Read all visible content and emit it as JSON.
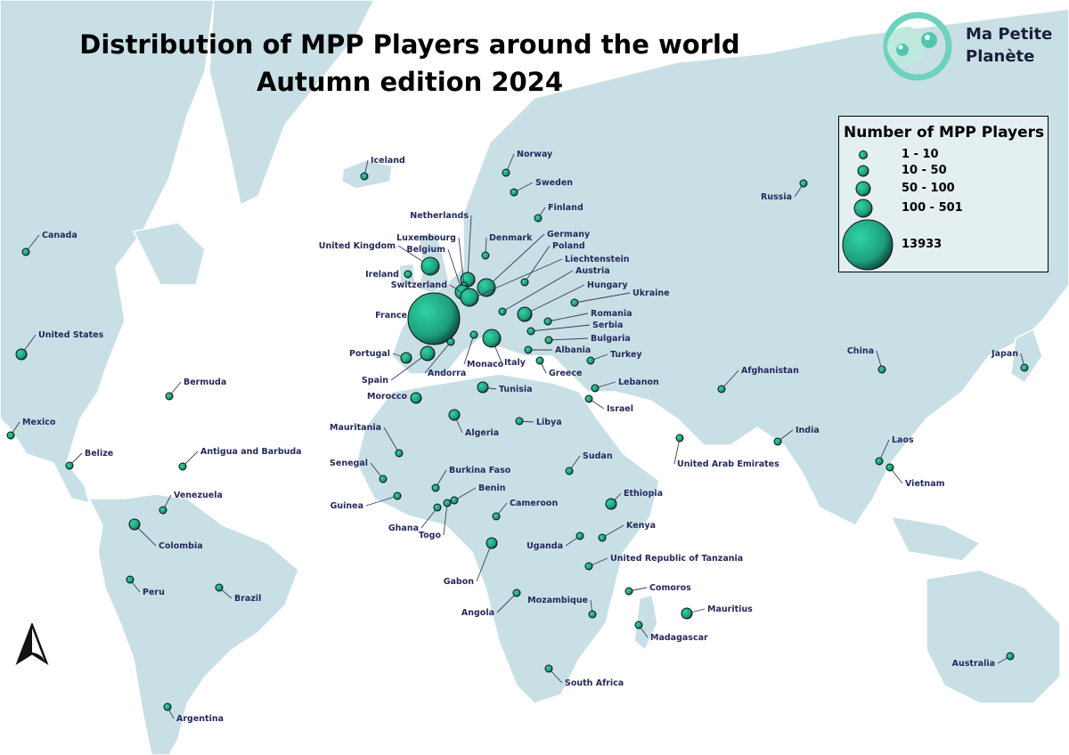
{
  "title_line1": "Distribution of MPP Players around the world",
  "title_line2": "Autumn edition 2024",
  "logo": {
    "line1": "Ma Petite",
    "line2": "Planète",
    "icon": "alien-face-logo-icon",
    "color": "#4fc7ad"
  },
  "legend": {
    "title": "Number of MPP Players",
    "items": [
      {
        "label": "1 - 10"
      },
      {
        "label": "10 - 50"
      },
      {
        "label": "50 - 100"
      },
      {
        "label": "100 - 501"
      },
      {
        "label": "13933"
      }
    ]
  },
  "colors": {
    "water": "#ffffff",
    "land": "#c8dfe6",
    "marker": "#27b98f",
    "label": "#262a5c"
  },
  "north_arrow_icon": "north-arrow-icon",
  "countries": [
    {
      "name": "Iceland",
      "size": 1
    },
    {
      "name": "Norway",
      "size": 1
    },
    {
      "name": "Sweden",
      "size": 1
    },
    {
      "name": "Finland",
      "size": 1
    },
    {
      "name": "Russia",
      "size": 1
    },
    {
      "name": "Netherlands",
      "size": 3
    },
    {
      "name": "Denmark",
      "size": 1
    },
    {
      "name": "Germany",
      "size": 4
    },
    {
      "name": "Poland",
      "size": 1
    },
    {
      "name": "Liechtenstein",
      "size": 1
    },
    {
      "name": "Austria",
      "size": 1
    },
    {
      "name": "Luxembourg",
      "size": 1
    },
    {
      "name": "Belgium",
      "size": 3
    },
    {
      "name": "United Kingdom",
      "size": 4
    },
    {
      "name": "Ireland",
      "size": 1
    },
    {
      "name": "Switzerland",
      "size": 4
    },
    {
      "name": "Hungary",
      "size": 3
    },
    {
      "name": "Ukraine",
      "size": 1
    },
    {
      "name": "France",
      "size": 5
    },
    {
      "name": "Romania",
      "size": 1
    },
    {
      "name": "Serbia",
      "size": 1
    },
    {
      "name": "Bulgaria",
      "size": 1
    },
    {
      "name": "Albania",
      "size": 1
    },
    {
      "name": "Turkey",
      "size": 1
    },
    {
      "name": "Greece",
      "size": 1
    },
    {
      "name": "Italy",
      "size": 4
    },
    {
      "name": "Monaco",
      "size": 1
    },
    {
      "name": "Andorra",
      "size": 1
    },
    {
      "name": "Portugal",
      "size": 2
    },
    {
      "name": "Spain",
      "size": 3
    },
    {
      "name": "Morocco",
      "size": 2
    },
    {
      "name": "Tunisia",
      "size": 2
    },
    {
      "name": "Algeria",
      "size": 2
    },
    {
      "name": "Libya",
      "size": 1
    },
    {
      "name": "Lebanon",
      "size": 1
    },
    {
      "name": "Israel",
      "size": 1
    },
    {
      "name": "Afghanistan",
      "size": 1
    },
    {
      "name": "China",
      "size": 1
    },
    {
      "name": "Japan",
      "size": 1
    },
    {
      "name": "India",
      "size": 1
    },
    {
      "name": "United Arab Emirates",
      "size": 1
    },
    {
      "name": "Laos",
      "size": 1
    },
    {
      "name": "Vietnam",
      "size": 1
    },
    {
      "name": "Canada",
      "size": 1
    },
    {
      "name": "United States",
      "size": 2
    },
    {
      "name": "Bermuda",
      "size": 1
    },
    {
      "name": "Mexico",
      "size": 1
    },
    {
      "name": "Belize",
      "size": 1
    },
    {
      "name": "Antigua and Barbuda",
      "size": 1
    },
    {
      "name": "Venezuela",
      "size": 1
    },
    {
      "name": "Colombia",
      "size": 2
    },
    {
      "name": "Peru",
      "size": 1
    },
    {
      "name": "Brazil",
      "size": 1
    },
    {
      "name": "Argentina",
      "size": 1
    },
    {
      "name": "Mauritania",
      "size": 1
    },
    {
      "name": "Senegal",
      "size": 1
    },
    {
      "name": "Guinea",
      "size": 1
    },
    {
      "name": "Burkina Faso",
      "size": 1
    },
    {
      "name": "Benin",
      "size": 1
    },
    {
      "name": "Ghana",
      "size": 1
    },
    {
      "name": "Togo",
      "size": 1
    },
    {
      "name": "Cameroon",
      "size": 1
    },
    {
      "name": "Gabon",
      "size": 2
    },
    {
      "name": "Sudan",
      "size": 1
    },
    {
      "name": "Ethiopia",
      "size": 2
    },
    {
      "name": "Uganda",
      "size": 1
    },
    {
      "name": "Kenya",
      "size": 1
    },
    {
      "name": "United Republic of Tanzania",
      "size": 1
    },
    {
      "name": "Angola",
      "size": 1
    },
    {
      "name": "Mozambique",
      "size": 1
    },
    {
      "name": "Comoros",
      "size": 1
    },
    {
      "name": "Mauritius",
      "size": 2
    },
    {
      "name": "Madagascar",
      "size": 1
    },
    {
      "name": "South Africa",
      "size": 1
    },
    {
      "name": "Australia",
      "size": 1
    }
  ]
}
